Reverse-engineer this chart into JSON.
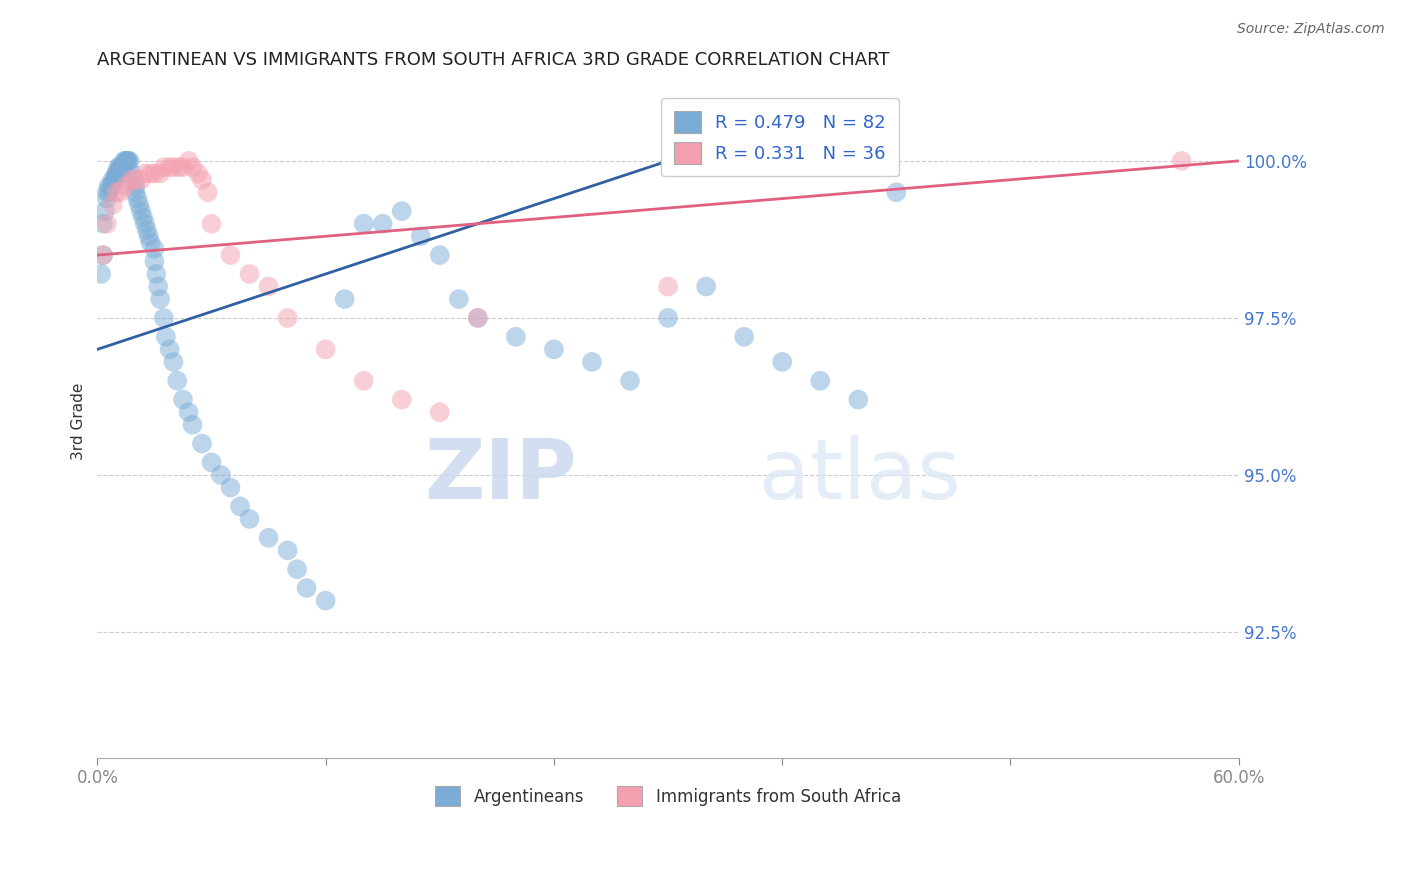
{
  "title": "ARGENTINEAN VS IMMIGRANTS FROM SOUTH AFRICA 3RD GRADE CORRELATION CHART",
  "source": "Source: ZipAtlas.com",
  "ylabel": "3rd Grade",
  "yticks": [
    92.5,
    95.0,
    97.5,
    100.0
  ],
  "ytick_labels": [
    "92.5%",
    "95.0%",
    "97.5%",
    "100.0%"
  ],
  "xmin": 0.0,
  "xmax": 60.0,
  "ymin": 90.5,
  "ymax": 101.2,
  "blue_R": 0.479,
  "blue_N": 82,
  "pink_R": 0.331,
  "pink_N": 36,
  "blue_color": "#7aacd6",
  "pink_color": "#f4a0b0",
  "blue_line_color": "#3060a0",
  "pink_line_color": "#e06080",
  "watermark_zip": "ZIP",
  "watermark_atlas": "atlas",
  "blue_scatter_x": [
    0.2,
    0.3,
    0.3,
    0.4,
    0.5,
    0.5,
    0.6,
    0.6,
    0.7,
    0.8,
    0.8,
    0.9,
    0.9,
    1.0,
    1.0,
    1.1,
    1.1,
    1.2,
    1.2,
    1.3,
    1.3,
    1.4,
    1.5,
    1.5,
    1.6,
    1.6,
    1.7,
    1.8,
    1.9,
    2.0,
    2.0,
    2.1,
    2.2,
    2.3,
    2.4,
    2.5,
    2.6,
    2.7,
    2.8,
    3.0,
    3.0,
    3.1,
    3.2,
    3.3,
    3.5,
    3.6,
    3.8,
    4.0,
    4.2,
    4.5,
    4.8,
    5.0,
    5.5,
    6.0,
    6.5,
    7.0,
    7.5,
    8.0,
    9.0,
    10.0,
    10.5,
    11.0,
    12.0,
    13.0,
    14.0,
    15.0,
    16.0,
    17.0,
    18.0,
    19.0,
    20.0,
    22.0,
    24.0,
    26.0,
    28.0,
    30.0,
    32.0,
    34.0,
    36.0,
    38.0,
    40.0,
    42.0
  ],
  "blue_scatter_y": [
    98.2,
    98.5,
    99.0,
    99.2,
    99.4,
    99.5,
    99.5,
    99.6,
    99.6,
    99.6,
    99.7,
    99.7,
    99.7,
    99.8,
    99.8,
    99.8,
    99.9,
    99.9,
    99.9,
    99.9,
    99.9,
    100.0,
    100.0,
    100.0,
    100.0,
    100.0,
    100.0,
    99.8,
    99.7,
    99.6,
    99.5,
    99.4,
    99.3,
    99.2,
    99.1,
    99.0,
    98.9,
    98.8,
    98.7,
    98.6,
    98.4,
    98.2,
    98.0,
    97.8,
    97.5,
    97.2,
    97.0,
    96.8,
    96.5,
    96.2,
    96.0,
    95.8,
    95.5,
    95.2,
    95.0,
    94.8,
    94.5,
    94.3,
    94.0,
    93.8,
    93.5,
    93.2,
    93.0,
    97.8,
    99.0,
    99.0,
    99.2,
    98.8,
    98.5,
    97.8,
    97.5,
    97.2,
    97.0,
    96.8,
    96.5,
    97.5,
    98.0,
    97.2,
    96.8,
    96.5,
    96.2,
    99.5
  ],
  "pink_scatter_x": [
    0.3,
    0.5,
    0.8,
    1.0,
    1.2,
    1.5,
    1.8,
    2.0,
    2.3,
    2.5,
    2.8,
    3.0,
    3.3,
    3.5,
    3.8,
    4.0,
    4.3,
    4.5,
    4.8,
    5.0,
    5.3,
    5.5,
    5.8,
    6.0,
    7.0,
    8.0,
    9.0,
    10.0,
    12.0,
    14.0,
    16.0,
    18.0,
    20.0,
    30.0,
    40.0,
    57.0
  ],
  "pink_scatter_y": [
    98.5,
    99.0,
    99.3,
    99.5,
    99.5,
    99.6,
    99.7,
    99.7,
    99.7,
    99.8,
    99.8,
    99.8,
    99.8,
    99.9,
    99.9,
    99.9,
    99.9,
    99.9,
    100.0,
    99.9,
    99.8,
    99.7,
    99.5,
    99.0,
    98.5,
    98.2,
    98.0,
    97.5,
    97.0,
    96.5,
    96.2,
    96.0,
    97.5,
    98.0,
    100.0,
    100.0
  ],
  "blue_line_x0": 0.0,
  "blue_line_y0": 97.0,
  "blue_line_x1": 30.0,
  "blue_line_y1": 100.0,
  "pink_line_x0": 0.0,
  "pink_line_y0": 98.5,
  "pink_line_x1": 60.0,
  "pink_line_y1": 100.0
}
